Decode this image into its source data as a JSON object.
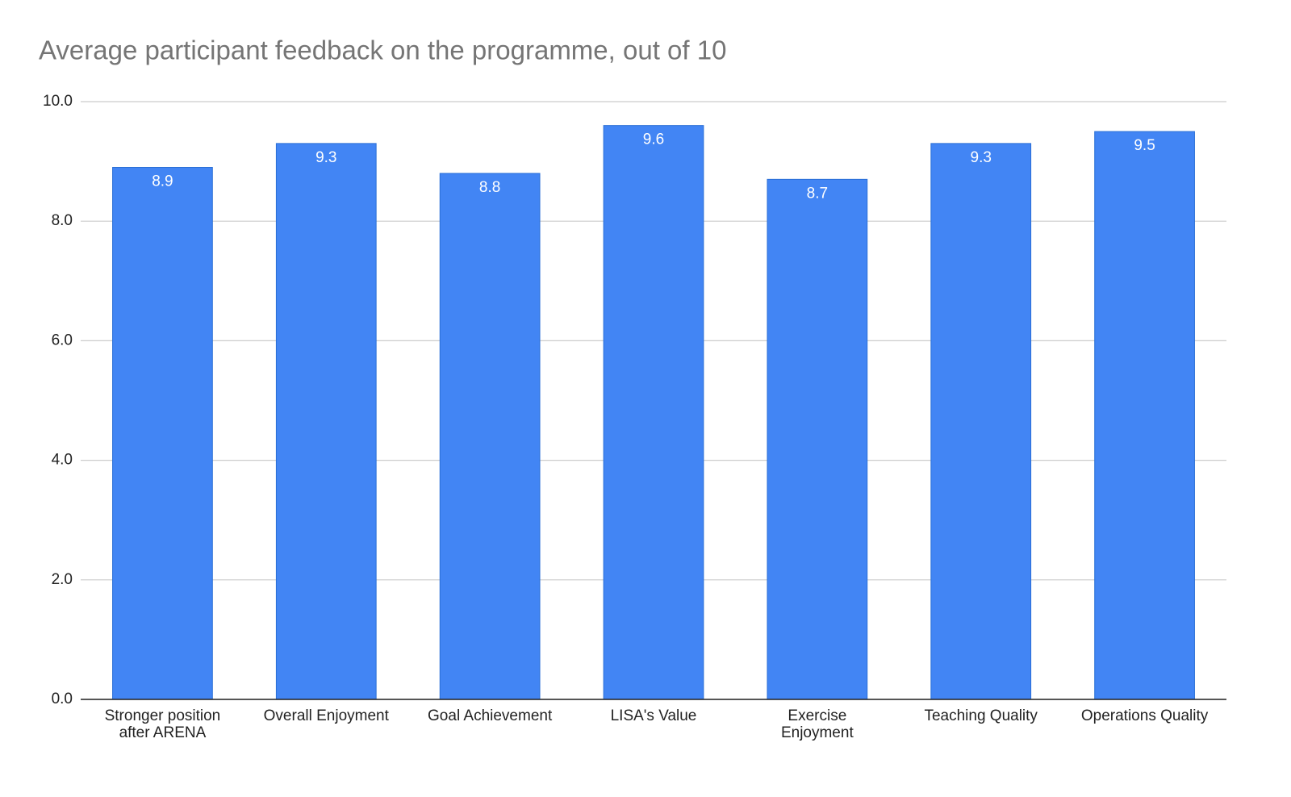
{
  "chart_data": {
    "type": "bar",
    "title": "Average participant feedback on the programme, out of 10",
    "categories": [
      "Stronger position\nafter ARENA",
      "Overall Enjoyment",
      "Goal Achievement",
      "LISA's Value",
      "Exercise\nEnjoyment",
      "Teaching Quality",
      "Operations Quality"
    ],
    "values": [
      8.9,
      9.3,
      8.8,
      9.6,
      8.7,
      9.3,
      9.5
    ],
    "color": "#4285f4",
    "ylim": [
      0,
      10
    ],
    "yticks": [
      {
        "value": 0,
        "label": "0.0"
      },
      {
        "value": 2,
        "label": "2.0"
      },
      {
        "value": 4,
        "label": "4.0"
      },
      {
        "value": 6,
        "label": "6.0"
      },
      {
        "value": 8,
        "label": "8.0"
      },
      {
        "value": 10,
        "label": "10.0"
      }
    ],
    "grid": true
  }
}
